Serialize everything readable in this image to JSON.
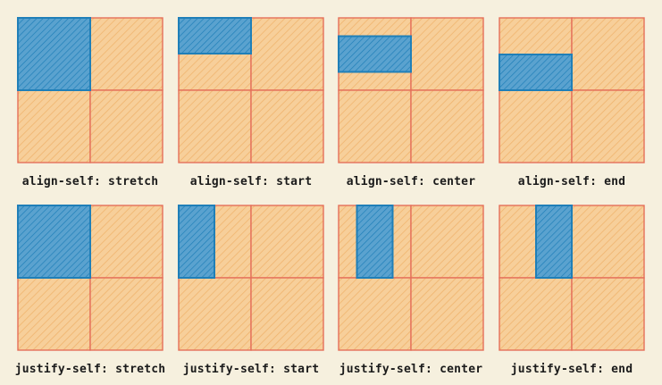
{
  "colors": {
    "background": "#f6f0de",
    "cell_fill": "#f7cf9a",
    "cell_hatch": "#f0b46e",
    "grid_line": "#e5705a",
    "item_fill": "#5aa2cf",
    "item_stroke": "#1f7fb8"
  },
  "grid": {
    "rows": 2,
    "cols": 2
  },
  "panels": [
    {
      "caption": "align-self: stretch",
      "property": "align-self",
      "value": "stretch"
    },
    {
      "caption": "align-self: start",
      "property": "align-self",
      "value": "start"
    },
    {
      "caption": "align-self: center",
      "property": "align-self",
      "value": "center"
    },
    {
      "caption": "align-self: end",
      "property": "align-self",
      "value": "end"
    },
    {
      "caption": "justify-self: stretch",
      "property": "justify-self",
      "value": "stretch"
    },
    {
      "caption": "justify-self: start",
      "property": "justify-self",
      "value": "start"
    },
    {
      "caption": "justify-self: center",
      "property": "justify-self",
      "value": "center"
    },
    {
      "caption": "justify-self: end",
      "property": "justify-self",
      "value": "end"
    }
  ]
}
